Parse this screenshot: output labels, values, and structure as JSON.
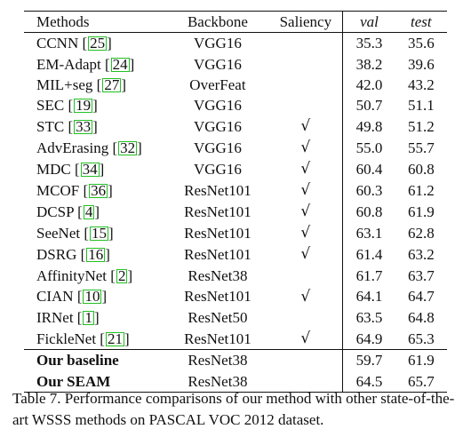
{
  "table": {
    "headers": [
      "Methods",
      "Backbone",
      "Saliency",
      "val",
      "test"
    ],
    "rows": [
      {
        "method": "CCNN",
        "ref": "25",
        "backbone": "VGG16",
        "saliency": false,
        "val": "35.3",
        "test": "35.6"
      },
      {
        "method": "EM-Adapt",
        "ref": "24",
        "backbone": "VGG16",
        "saliency": false,
        "val": "38.2",
        "test": "39.6"
      },
      {
        "method": "MIL+seg",
        "ref": "27",
        "backbone": "OverFeat",
        "saliency": false,
        "val": "42.0",
        "test": "43.2"
      },
      {
        "method": "SEC",
        "ref": "19",
        "backbone": "VGG16",
        "saliency": false,
        "val": "50.7",
        "test": "51.1"
      },
      {
        "method": "STC",
        "ref": "33",
        "backbone": "VGG16",
        "saliency": true,
        "val": "49.8",
        "test": "51.2"
      },
      {
        "method": "AdvErasing",
        "ref": "32",
        "backbone": "VGG16",
        "saliency": true,
        "val": "55.0",
        "test": "55.7"
      },
      {
        "method": "MDC",
        "ref": "34",
        "backbone": "VGG16",
        "saliency": true,
        "val": "60.4",
        "test": "60.8"
      },
      {
        "method": "MCOF",
        "ref": "36",
        "backbone": "ResNet101",
        "saliency": true,
        "val": "60.3",
        "test": "61.2"
      },
      {
        "method": "DCSP",
        "ref": "4",
        "backbone": "ResNet101",
        "saliency": true,
        "val": "60.8",
        "test": "61.9"
      },
      {
        "method": "SeeNet",
        "ref": "15",
        "backbone": "ResNet101",
        "saliency": true,
        "val": "63.1",
        "test": "62.8"
      },
      {
        "method": "DSRG",
        "ref": "16",
        "backbone": "ResNet101",
        "saliency": true,
        "val": "61.4",
        "test": "63.2"
      },
      {
        "method": "AffinityNet",
        "ref": "2",
        "backbone": "ResNet38",
        "saliency": false,
        "val": "61.7",
        "test": "63.7"
      },
      {
        "method": "CIAN",
        "ref": "10",
        "backbone": "ResNet101",
        "saliency": true,
        "val": "64.1",
        "test": "64.7"
      },
      {
        "method": "IRNet",
        "ref": "1",
        "backbone": "ResNet50",
        "saliency": false,
        "val": "63.5",
        "test": "64.8"
      },
      {
        "method": "FickleNet",
        "ref": "21",
        "backbone": "ResNet101",
        "saliency": true,
        "val": "64.9",
        "test": "65.3"
      }
    ],
    "ours": [
      {
        "method": "Our baseline",
        "backbone": "ResNet38",
        "val": "59.7",
        "test": "61.9"
      },
      {
        "method": "Our SEAM",
        "backbone": "ResNet38",
        "val": "64.5",
        "test": "65.7"
      }
    ]
  },
  "check_symbol": "√",
  "caption": "Table 7. Performance comparisons of our method with other state-of-the-art WSSS methods on PASCAL VOC 2012 dataset.",
  "colors": {
    "reference_box": "#22c022",
    "text": "#111111"
  }
}
